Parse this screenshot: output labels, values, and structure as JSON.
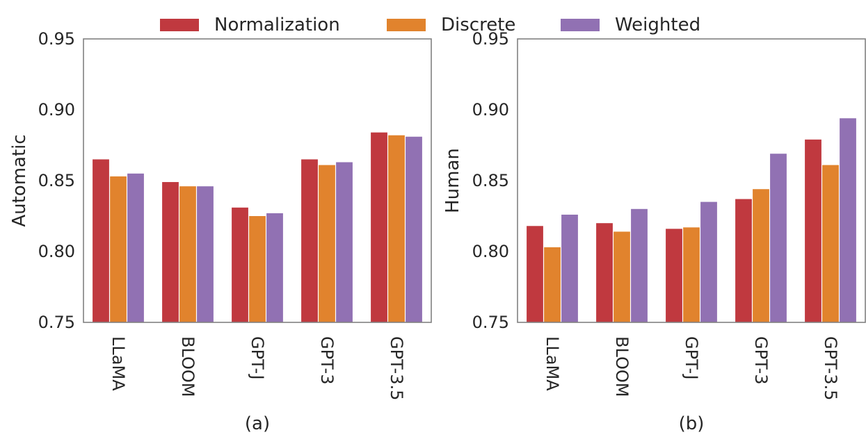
{
  "legend": [
    {
      "name": "Normalization",
      "color": "#c0393f"
    },
    {
      "name": "Discrete",
      "color": "#e1832d"
    },
    {
      "name": "Weighted",
      "color": "#9171b3"
    }
  ],
  "chart_data": [
    {
      "type": "bar",
      "subplot_label": "(a)",
      "ylabel": "Automatic",
      "categories": [
        "LLaMA",
        "BLOOM",
        "GPT-J",
        "GPT-3",
        "GPT-3.5"
      ],
      "series": [
        {
          "name": "Normalization",
          "values": [
            0.865,
            0.849,
            0.831,
            0.865,
            0.884
          ]
        },
        {
          "name": "Discrete",
          "values": [
            0.853,
            0.846,
            0.825,
            0.861,
            0.882
          ]
        },
        {
          "name": "Weighted",
          "values": [
            0.855,
            0.846,
            0.827,
            0.863,
            0.881
          ]
        }
      ],
      "ylim": [
        0.75,
        0.95
      ],
      "yticks": [
        "0.75",
        "0.80",
        "0.85",
        "0.90",
        "0.95"
      ],
      "grid": false,
      "legend_position": "top-center"
    },
    {
      "type": "bar",
      "subplot_label": "(b)",
      "ylabel": "Human",
      "categories": [
        "LLaMA",
        "BLOOM",
        "GPT-J",
        "GPT-3",
        "GPT-3.5"
      ],
      "series": [
        {
          "name": "Normalization",
          "values": [
            0.818,
            0.82,
            0.816,
            0.837,
            0.879
          ]
        },
        {
          "name": "Discrete",
          "values": [
            0.803,
            0.814,
            0.817,
            0.844,
            0.861
          ]
        },
        {
          "name": "Weighted",
          "values": [
            0.826,
            0.83,
            0.835,
            0.869,
            0.894
          ]
        }
      ],
      "ylim": [
        0.75,
        0.95
      ],
      "yticks": [
        "0.75",
        "0.80",
        "0.85",
        "0.90",
        "0.95"
      ],
      "grid": false,
      "legend_position": "top-center"
    }
  ]
}
